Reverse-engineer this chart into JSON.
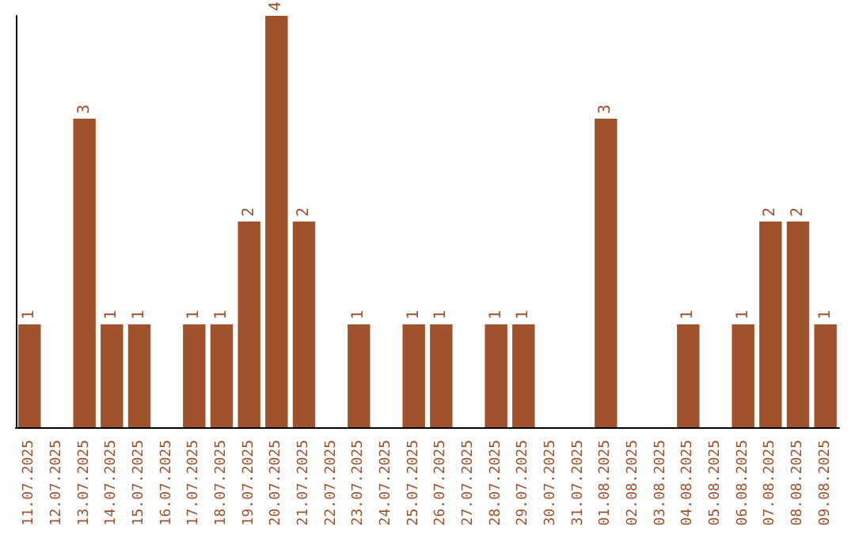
{
  "chart_data": {
    "type": "bar",
    "categories": [
      "11.07.2025",
      "12.07.2025",
      "13.07.2025",
      "14.07.2025",
      "15.07.2025",
      "16.07.2025",
      "17.07.2025",
      "18.07.2025",
      "19.07.2025",
      "20.07.2025",
      "21.07.2025",
      "22.07.2025",
      "23.07.2025",
      "24.07.2025",
      "25.07.2025",
      "26.07.2025",
      "27.07.2025",
      "28.07.2025",
      "29.07.2025",
      "30.07.2025",
      "31.07.2025",
      "01.08.2025",
      "02.08.2025",
      "03.08.2025",
      "04.08.2025",
      "05.08.2025",
      "06.08.2025",
      "07.08.2025",
      "08.08.2025",
      "09.08.2025"
    ],
    "values": [
      1,
      0,
      3,
      1,
      1,
      0,
      1,
      1,
      2,
      4,
      2,
      0,
      1,
      0,
      1,
      1,
      0,
      1,
      1,
      0,
      0,
      3,
      0,
      0,
      1,
      0,
      1,
      2,
      2,
      1
    ],
    "value_labels": [
      "1",
      null,
      "3",
      "1",
      "1",
      null,
      "1",
      "1",
      "2",
      "4",
      "2",
      null,
      "1",
      null,
      "1",
      "1",
      null,
      "1",
      "1",
      null,
      null,
      "3",
      null,
      null,
      "1",
      null,
      "1",
      "2",
      "2",
      "1"
    ],
    "color": "#a0522d",
    "tick_labels": "x"
  }
}
